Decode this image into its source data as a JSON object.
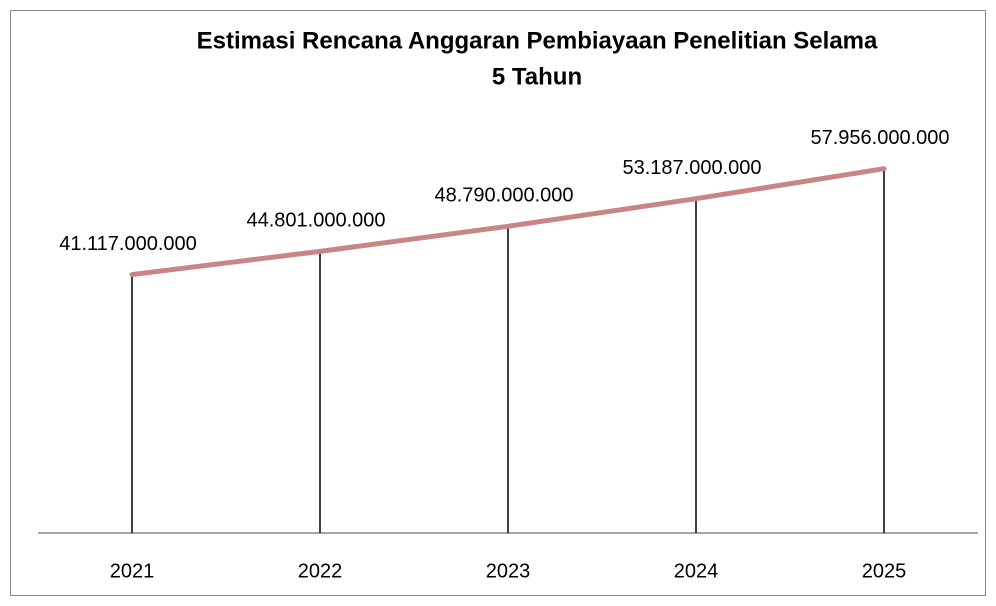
{
  "chart_data": {
    "type": "line",
    "title": [
      "Estimasi Rencana Anggaran Pembiayaan Penelitian Selama",
      "5 Tahun"
    ],
    "categories": [
      "2021",
      "2022",
      "2023",
      "2024",
      "2025"
    ],
    "series": [
      {
        "color": "#c98585",
        "values": [
          41117000000,
          44801000000,
          48790000000,
          53187000000,
          57956000000
        ],
        "value_labels": [
          "41.117.000.000",
          "44.801.000.000",
          "48.790.000.000",
          "53.187.000.000",
          "57.956.000.000"
        ]
      }
    ],
    "ylim": [
      0,
      70000000000
    ],
    "drop_lines": true
  }
}
